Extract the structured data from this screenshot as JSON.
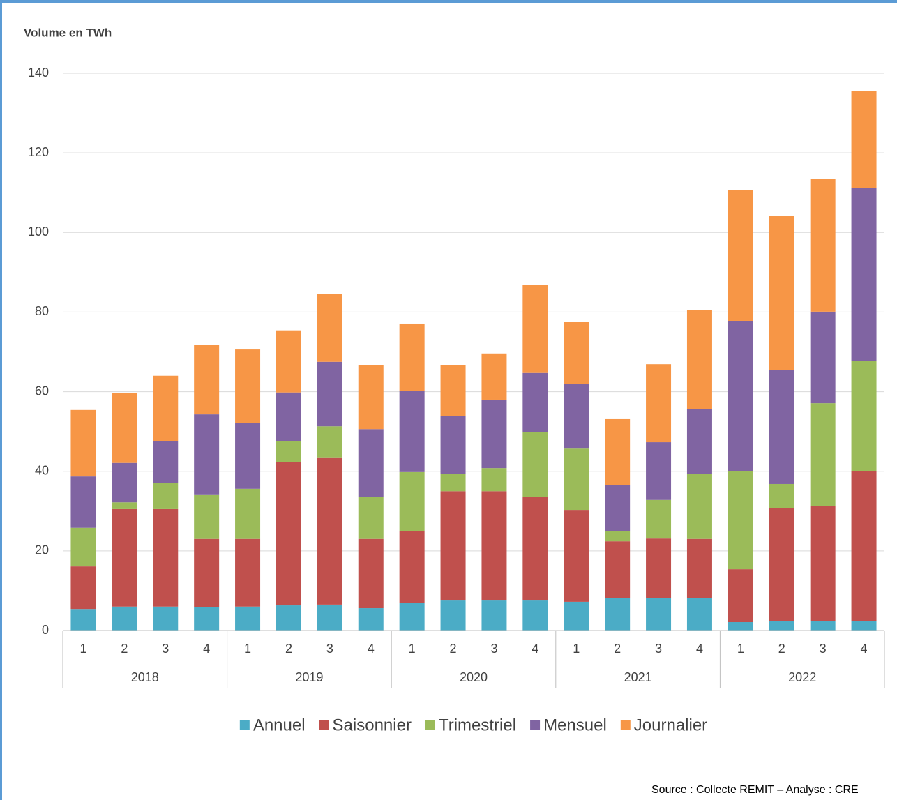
{
  "chart_data": {
    "type": "stacked_bar",
    "y_axis_label": "Volume en TWh",
    "source": "Source : Collecte REMIT – Analyse : CRE",
    "categories": [
      "1",
      "2",
      "3",
      "4",
      "1",
      "2",
      "3",
      "4",
      "1",
      "2",
      "3",
      "4",
      "1",
      "2",
      "3",
      "4",
      "1",
      "2",
      "3",
      "4"
    ],
    "group_labels": [
      "2018",
      "2019",
      "2020",
      "2021",
      "2022"
    ],
    "ylim": [
      0,
      140
    ],
    "yticks": [
      0,
      20,
      40,
      60,
      80,
      100,
      120,
      140
    ],
    "grid": true,
    "legend": "bottom",
    "series": [
      {
        "name": "Annuel",
        "color": "#4bacc6",
        "values": [
          5.4,
          6.0,
          6.0,
          5.8,
          6.0,
          6.3,
          6.5,
          5.6,
          7.0,
          7.7,
          7.7,
          7.7,
          7.2,
          8.1,
          8.2,
          8.1,
          2.1,
          2.3,
          2.3,
          2.3
        ]
      },
      {
        "name": "Saisonnier",
        "color": "#c0504d",
        "values": [
          10.7,
          24.5,
          24.5,
          17.2,
          17.0,
          36.1,
          37.0,
          17.4,
          17.9,
          27.3,
          27.3,
          25.9,
          23.1,
          14.3,
          14.9,
          14.9,
          13.3,
          28.5,
          28.9,
          37.7
        ]
      },
      {
        "name": "Trimestriel",
        "color": "#9bbb59",
        "values": [
          9.7,
          1.7,
          6.5,
          11.2,
          12.6,
          5.1,
          7.8,
          10.5,
          14.9,
          4.4,
          5.8,
          16.2,
          15.4,
          2.5,
          9.7,
          16.3,
          24.6,
          6.0,
          25.9,
          27.8
        ]
      },
      {
        "name": "Mensuel",
        "color": "#8064a2",
        "values": [
          12.9,
          9.9,
          10.5,
          20.1,
          16.6,
          12.3,
          16.2,
          17.1,
          20.3,
          14.4,
          17.2,
          14.9,
          16.2,
          11.7,
          14.5,
          16.4,
          37.8,
          28.7,
          23.0,
          43.3
        ]
      },
      {
        "name": "Journalier",
        "color": "#f79646",
        "values": [
          16.7,
          17.5,
          16.5,
          17.4,
          18.4,
          15.6,
          17.0,
          16.0,
          17.0,
          12.8,
          11.6,
          22.2,
          15.7,
          16.5,
          19.6,
          24.9,
          32.9,
          38.6,
          33.4,
          24.5
        ]
      }
    ]
  }
}
